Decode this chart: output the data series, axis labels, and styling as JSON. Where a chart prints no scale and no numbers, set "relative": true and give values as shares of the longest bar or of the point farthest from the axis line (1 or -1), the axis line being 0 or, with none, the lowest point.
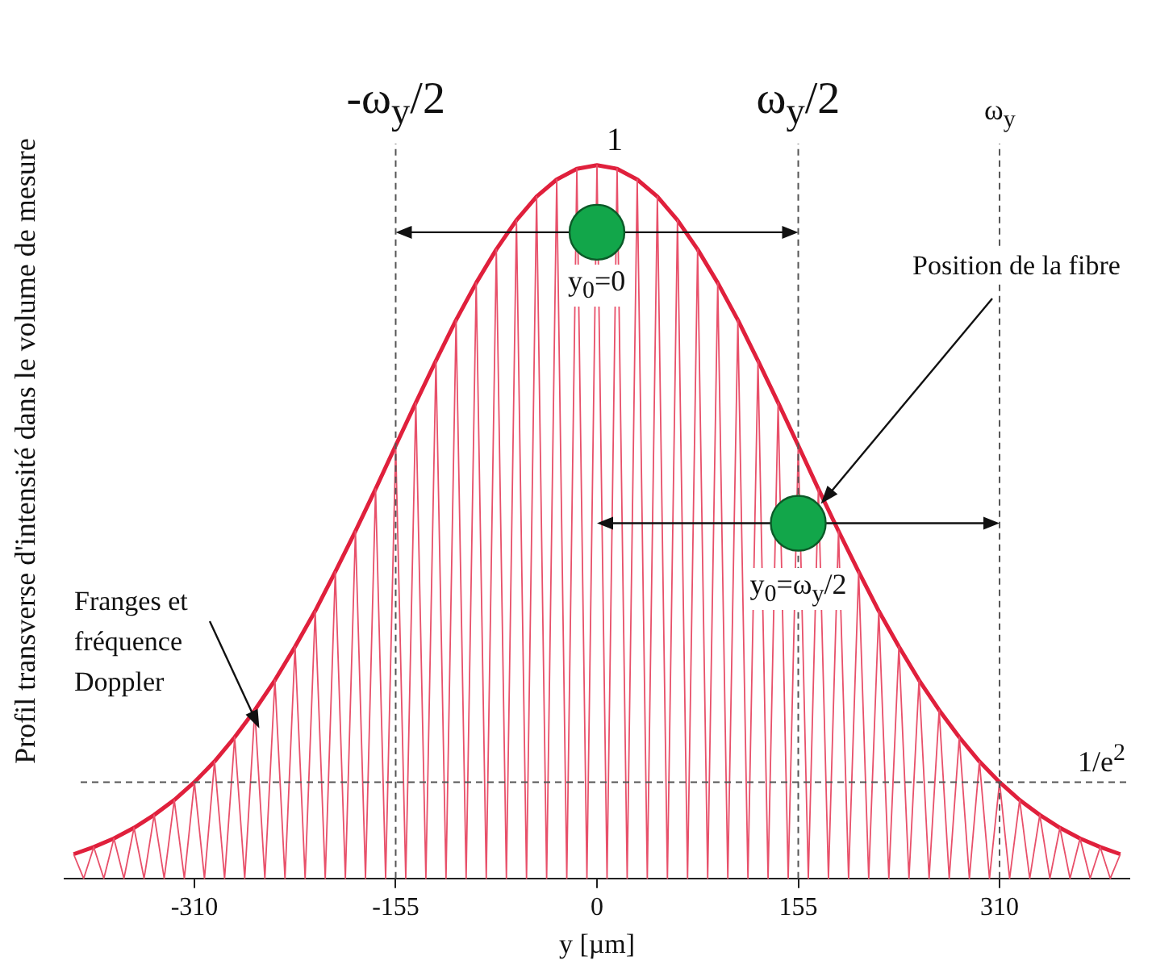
{
  "chart_data": {
    "type": "line",
    "xlabel": "y [µm]",
    "ylabel": "Profil transverse d'intensité dans le volume de mesure",
    "xlim": [
      -410,
      410
    ],
    "xticks": [
      -310,
      -155,
      0,
      155,
      310
    ],
    "relative": true,
    "grid": false,
    "marker": "none",
    "line_style": "solid",
    "series": [
      {
        "type": "line",
        "color": "#e8506a",
        "x": [
          -403,
          -395.25,
          -387.5,
          -379.75,
          -372,
          -364.25,
          -356.5,
          -348.75,
          -341,
          -333.25,
          -325.5,
          -317.75,
          -310,
          -302.25,
          -294.5,
          -286.75,
          -279,
          -271.25,
          -263.5,
          -255.75,
          -248,
          -240.25,
          -232.5,
          -224.75,
          -217,
          -209.25,
          -201.5,
          -193.75,
          -186,
          -178.25,
          -170.5,
          -162.75,
          -155,
          -147.25,
          -139.5,
          -131.75,
          -124,
          -116.25,
          -108.5,
          -100.75,
          -93,
          -85.25,
          -77.5,
          -69.75,
          -62,
          -54.25,
          -46.5,
          -38.75,
          -31,
          -23.25,
          -15.5,
          -7.75,
          0,
          7.75,
          15.5,
          23.25,
          31,
          38.75,
          46.5,
          54.25,
          62,
          69.75,
          77.5,
          85.25,
          93,
          100.75,
          108.5,
          116.25,
          124,
          131.75,
          139.5,
          147.25,
          155,
          162.75,
          170.5,
          178.25,
          186,
          193.75,
          201.5,
          209.25,
          217,
          224.75,
          232.5,
          240.25,
          248,
          255.75,
          263.5,
          271.25,
          279,
          286.75,
          294.5,
          302.25,
          310,
          317.75,
          325.5,
          333.25,
          341,
          348.75,
          356.5,
          364.25,
          372,
          379.75,
          387.5,
          395.25,
          403
        ],
        "values": [
          0.034,
          0,
          0.044,
          0,
          0.056,
          0,
          0.071,
          0,
          0.089,
          0,
          0.11,
          0,
          0.135,
          0,
          0.164,
          0,
          0.198,
          0,
          0.236,
          0,
          0.278,
          0,
          0.325,
          0,
          0.375,
          0,
          0.43,
          0,
          0.487,
          0,
          0.546,
          0,
          0.607,
          0,
          0.667,
          0,
          0.726,
          0,
          0.783,
          0,
          0.835,
          0,
          0.882,
          0,
          0.923,
          0,
          0.956,
          0,
          0.98,
          0,
          0.995,
          0,
          1,
          0,
          0.995,
          0,
          0.98,
          0,
          0.956,
          0,
          0.923,
          0,
          0.882,
          0,
          0.835,
          0,
          0.783,
          0,
          0.726,
          0,
          0.667,
          0,
          0.607,
          0,
          0.546,
          0,
          0.487,
          0,
          0.43,
          0,
          0.375,
          0,
          0.325,
          0,
          0.278,
          0,
          0.236,
          0,
          0.198,
          0,
          0.164,
          0,
          0.135,
          0,
          0.11,
          0,
          0.089,
          0,
          0.071,
          0,
          0.056,
          0,
          0.044,
          0,
          0.034
        ]
      },
      {
        "type": "line",
        "color": "#e0203c",
        "x": [
          -403,
          -387.5,
          -372,
          -356.5,
          -341,
          -325.5,
          -310,
          -294.5,
          -279,
          -263.5,
          -248,
          -232.5,
          -217,
          -201.5,
          -186,
          -170.5,
          -155,
          -139.5,
          -124,
          -108.5,
          -93,
          -77.5,
          -62,
          -46.5,
          -31,
          -15.5,
          0,
          15.5,
          31,
          46.5,
          62,
          77.5,
          93,
          108.5,
          124,
          139.5,
          155,
          170.5,
          186,
          201.5,
          217,
          232.5,
          248,
          263.5,
          279,
          294.5,
          310,
          325.5,
          341,
          356.5,
          372,
          387.5,
          403
        ],
        "values": [
          0.034,
          0.044,
          0.056,
          0.071,
          0.089,
          0.11,
          0.135,
          0.164,
          0.198,
          0.236,
          0.278,
          0.325,
          0.375,
          0.43,
          0.487,
          0.546,
          0.607,
          0.667,
          0.726,
          0.783,
          0.835,
          0.882,
          0.923,
          0.956,
          0.98,
          0.995,
          1,
          0.995,
          0.98,
          0.956,
          0.923,
          0.882,
          0.835,
          0.783,
          0.726,
          0.667,
          0.607,
          0.546,
          0.487,
          0.43,
          0.375,
          0.325,
          0.278,
          0.236,
          0.198,
          0.164,
          0.135,
          0.11,
          0.089,
          0.071,
          0.056,
          0.044,
          0.034
        ]
      }
    ],
    "ref_lines": [
      {
        "axis": "x",
        "value": -155,
        "label": "-ω$_{y}$/2",
        "line_style": "dashed"
      },
      {
        "axis": "x",
        "value": 155,
        "label": "ω$_{y}$/2",
        "line_style": "dashed"
      },
      {
        "axis": "x",
        "value": 310,
        "label": "ω$_{y}$",
        "line_style": "dashed"
      },
      {
        "axis": "y",
        "value": 0.135,
        "label": "1/e$^{2}$",
        "line_style": "dashed"
      }
    ],
    "annotations": [
      "y$_{0}$=0",
      "y$_{0}$=ω$_{y}$/2",
      "Position de la fibre",
      "Franges et fréquence Doppler",
      "1"
    ]
  }
}
